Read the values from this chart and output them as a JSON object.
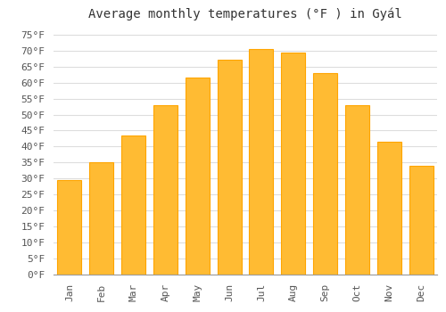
{
  "title": "Average monthly temperatures (°F ) in Gyál",
  "months": [
    "Jan",
    "Feb",
    "Mar",
    "Apr",
    "May",
    "Jun",
    "Jul",
    "Aug",
    "Sep",
    "Oct",
    "Nov",
    "Dec"
  ],
  "values": [
    29.5,
    35.0,
    43.5,
    53.0,
    61.5,
    67.0,
    70.5,
    69.5,
    63.0,
    53.0,
    41.5,
    34.0
  ],
  "bar_color": "#FFBB33",
  "bar_edge_color": "#FFA500",
  "background_color": "#ffffff",
  "grid_color": "#dddddd",
  "ylim": [
    0,
    78
  ],
  "yticks": [
    0,
    5,
    10,
    15,
    20,
    25,
    30,
    35,
    40,
    45,
    50,
    55,
    60,
    65,
    70,
    75
  ],
  "title_fontsize": 10,
  "tick_fontsize": 8,
  "font_family": "monospace"
}
